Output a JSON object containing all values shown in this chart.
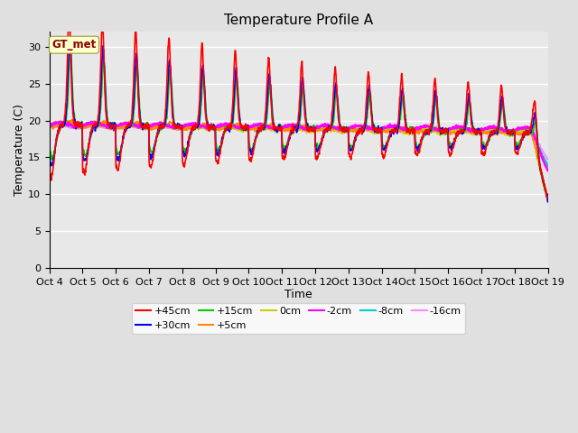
{
  "title": "Temperature Profile A",
  "xlabel": "Time",
  "ylabel": "Temperature (C)",
  "annotation": "GT_met",
  "ylim": [
    0,
    32
  ],
  "yticks": [
    0,
    5,
    10,
    15,
    20,
    25,
    30
  ],
  "days": 15,
  "series": {
    "+45cm": {
      "color": "#ff0000",
      "lw": 1.2
    },
    "+30cm": {
      "color": "#0000ff",
      "lw": 1.2
    },
    "+15cm": {
      "color": "#00cc00",
      "lw": 1.2
    },
    "+5cm": {
      "color": "#ff8800",
      "lw": 1.2
    },
    "0cm": {
      "color": "#cccc00",
      "lw": 1.2
    },
    "-2cm": {
      "color": "#ff00ff",
      "lw": 1.8
    },
    "-8cm": {
      "color": "#00cccc",
      "lw": 1.2
    },
    "-16cm": {
      "color": "#ff88ff",
      "lw": 1.2
    }
  },
  "x_tick_labels": [
    "Oct 4",
    "Oct 5",
    "Oct 6",
    "Oct 7",
    "Oct 8",
    "Oct 9",
    "Oct 10",
    "Oct 11",
    "Oct 12",
    "Oct 13",
    "Oct 14",
    "Oct 15",
    "Oct 16",
    "Oct 17",
    "Oct 18",
    "Oct 19"
  ],
  "background_color": "#e0e0e0",
  "plot_bg_color": "#e8e8e8",
  "grid_color": "#ffffff",
  "title_fontsize": 11,
  "axis_fontsize": 9,
  "tick_fontsize": 8
}
